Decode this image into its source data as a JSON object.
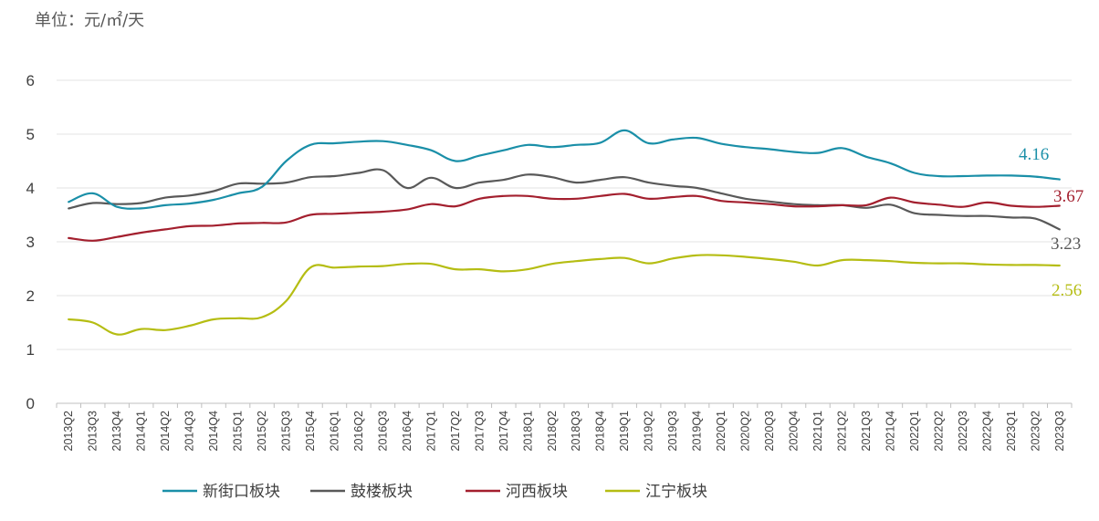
{
  "unit_label": "单位：元/㎡/天",
  "chart_data": {
    "type": "line",
    "title": "",
    "ylabel": "单位：元/㎡/天",
    "xlabel": "",
    "ylim": [
      0,
      6
    ],
    "yticks": [
      0,
      1,
      2,
      3,
      4,
      5,
      6
    ],
    "grid": "horizontal",
    "legend_position": "bottom",
    "x": [
      "2013Q2",
      "2013Q3",
      "2013Q4",
      "2014Q1",
      "2014Q2",
      "2014Q3",
      "2014Q4",
      "2015Q1",
      "2015Q2",
      "2015Q3",
      "2015Q4",
      "2016Q1",
      "2016Q2",
      "2016Q3",
      "2016Q4",
      "2017Q1",
      "2017Q2",
      "2017Q3",
      "2017Q4",
      "2018Q1",
      "2018Q2",
      "2018Q3",
      "2018Q4",
      "2019Q1",
      "2019Q2",
      "2019Q3",
      "2019Q4",
      "2020Q1",
      "2020Q2",
      "2020Q3",
      "2020Q4",
      "2021Q1",
      "2021Q2",
      "2021Q3",
      "2021Q4",
      "2022Q1",
      "2022Q2",
      "2022Q3",
      "2022Q4",
      "2023Q1",
      "2023Q2",
      "2023Q3"
    ],
    "series": [
      {
        "name": "新街口板块",
        "color": "#1a8fa8",
        "end_label": "4.16",
        "values": [
          3.74,
          3.9,
          3.65,
          3.62,
          3.68,
          3.71,
          3.78,
          3.9,
          4.02,
          4.5,
          4.8,
          4.83,
          4.86,
          4.87,
          4.8,
          4.7,
          4.5,
          4.6,
          4.7,
          4.8,
          4.76,
          4.8,
          4.84,
          5.07,
          4.83,
          4.9,
          4.93,
          4.82,
          4.76,
          4.72,
          4.67,
          4.65,
          4.74,
          4.58,
          4.46,
          4.28,
          4.22,
          4.22,
          4.23,
          4.23,
          4.21,
          4.16
        ]
      },
      {
        "name": "鼓楼板块",
        "color": "#595959",
        "end_label": "3.23",
        "values": [
          3.62,
          3.72,
          3.7,
          3.72,
          3.82,
          3.86,
          3.94,
          4.08,
          4.08,
          4.1,
          4.2,
          4.22,
          4.28,
          4.33,
          4.0,
          4.19,
          4.0,
          4.1,
          4.15,
          4.25,
          4.2,
          4.1,
          4.15,
          4.2,
          4.1,
          4.04,
          4.0,
          3.9,
          3.8,
          3.75,
          3.7,
          3.68,
          3.68,
          3.63,
          3.69,
          3.53,
          3.5,
          3.48,
          3.48,
          3.45,
          3.43,
          3.23
        ]
      },
      {
        "name": "河西板块",
        "color": "#a31f2e",
        "end_label": "3.67",
        "values": [
          3.07,
          3.02,
          3.09,
          3.17,
          3.23,
          3.29,
          3.3,
          3.34,
          3.35,
          3.36,
          3.5,
          3.52,
          3.54,
          3.56,
          3.6,
          3.7,
          3.66,
          3.8,
          3.85,
          3.85,
          3.8,
          3.8,
          3.85,
          3.89,
          3.8,
          3.83,
          3.85,
          3.76,
          3.73,
          3.7,
          3.66,
          3.66,
          3.68,
          3.68,
          3.82,
          3.73,
          3.69,
          3.65,
          3.73,
          3.67,
          3.65,
          3.67
        ]
      },
      {
        "name": "江宁板块",
        "color": "#b5bd13",
        "end_label": "2.56",
        "values": [
          1.56,
          1.5,
          1.28,
          1.38,
          1.36,
          1.44,
          1.56,
          1.58,
          1.6,
          1.9,
          2.52,
          2.52,
          2.54,
          2.55,
          2.59,
          2.59,
          2.49,
          2.49,
          2.45,
          2.49,
          2.59,
          2.64,
          2.68,
          2.7,
          2.6,
          2.69,
          2.75,
          2.75,
          2.72,
          2.68,
          2.63,
          2.56,
          2.66,
          2.66,
          2.64,
          2.61,
          2.6,
          2.6,
          2.58,
          2.57,
          2.57,
          2.56
        ]
      }
    ]
  }
}
